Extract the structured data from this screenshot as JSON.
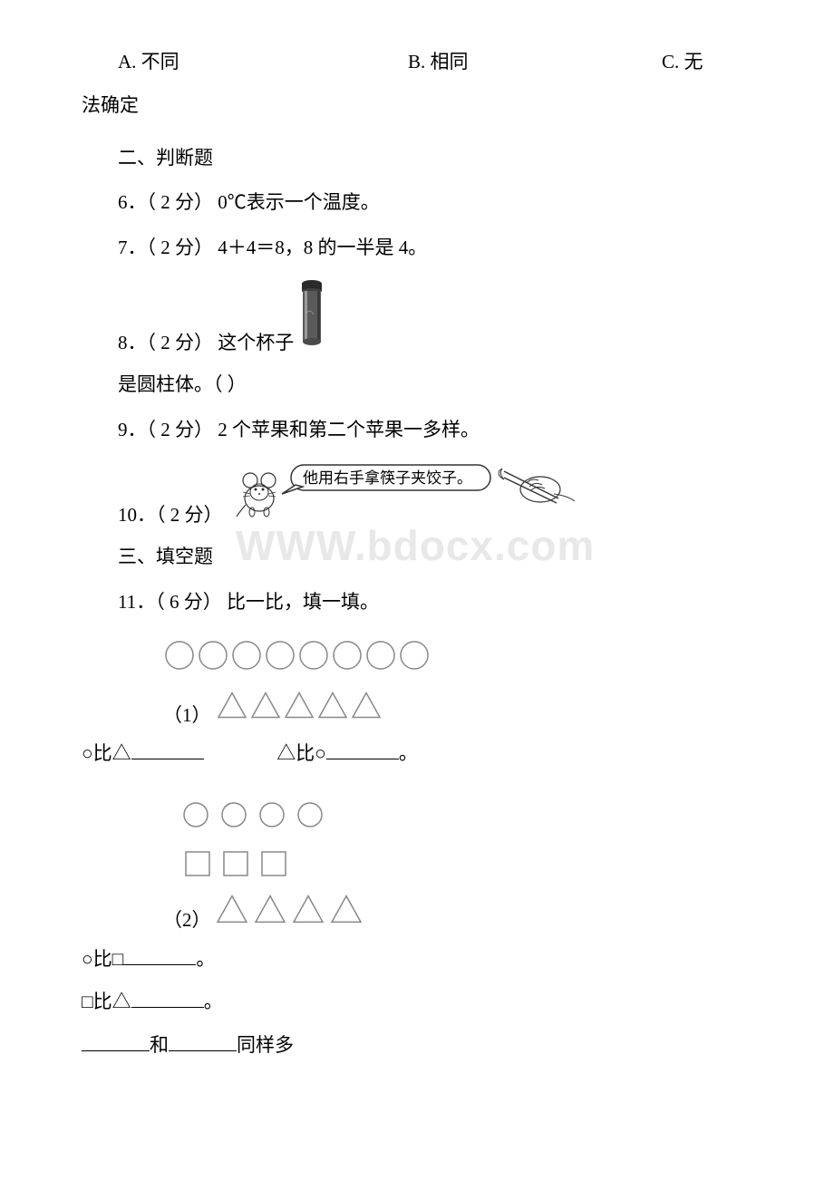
{
  "options": {
    "a": "A. 不同",
    "b": "B. 相同",
    "c": "C. 无",
    "c_wrap": "法确定"
  },
  "section2_title": "二、判断题",
  "q6": "6．（ 2 分） 0℃表示一个温度。",
  "q7": "7．（ 2 分） 4＋4＝8，8 的一半是 4。",
  "q8_prefix": "8．（ 2 分） 这个杯子",
  "q8_line2": "是圆柱体。（    ）",
  "q9": "9．（ 2 分） 2 个苹果和第二个苹果一多样。",
  "q10_prefix": "10．（ 2 分）",
  "speech_text": "他用右手拿筷子夹饺子。",
  "section3_title": "三、填空题",
  "q11": "11．（ 6 分） 比一比，填一填。",
  "sub1_label": "（1）",
  "sub2_label": "（2）",
  "compare1": {
    "part1_pre": "○比△",
    "part2_pre": "△比○",
    "suffix": "。"
  },
  "compare2a": {
    "pre": "○比□",
    "suffix": "。"
  },
  "compare2b": {
    "pre": "□比△",
    "suffix": "。"
  },
  "compare2c": {
    "mid": "和",
    "suffix": "同样多"
  },
  "watermark": "WWW.bdocx.com",
  "shapes": {
    "circles_row1_count": 8,
    "triangles_row1_count": 5,
    "circles_row2_count": 4,
    "squares_row2_count": 3,
    "triangles_row2_count": 4,
    "circle_stroke": "#888888",
    "triangle_stroke": "#888888",
    "square_stroke": "#888888",
    "stroke_width": 1.5
  },
  "cup": {
    "body_color": "#5a5a5a",
    "highlight": "#aaaaaa",
    "cap_color": "#2a2a2a",
    "width": 32,
    "height": 78
  },
  "mouse": {
    "body_color": "#888888",
    "line_color": "#333333"
  }
}
